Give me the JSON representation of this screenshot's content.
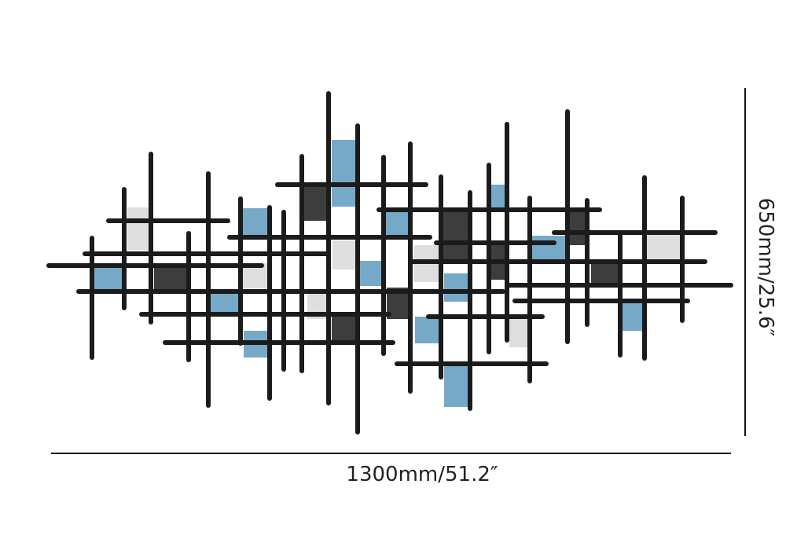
{
  "dimensions": {
    "width": "1300mm/51.2″",
    "height": "650mm/25.6″"
  }
}
